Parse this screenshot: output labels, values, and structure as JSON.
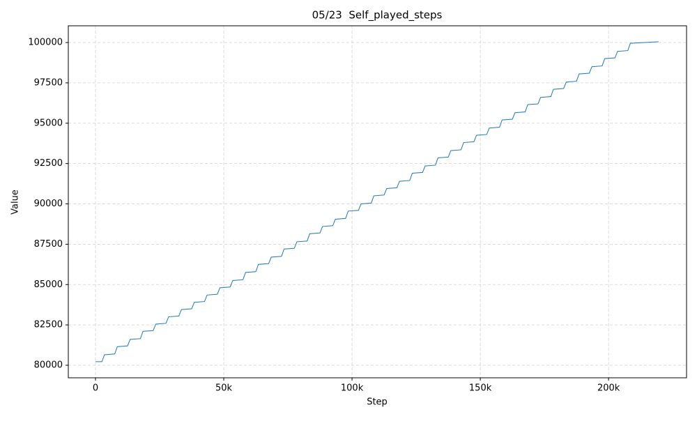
{
  "chart_data": {
    "type": "line",
    "title": "05/23  Self_played_steps",
    "x_label": "Step",
    "y_label": "Value",
    "x": [
      0,
      2500,
      3500,
      7500,
      8500,
      12500,
      13500,
      17500,
      18500,
      22500,
      23500,
      27500,
      28500,
      32500,
      33500,
      37500,
      38500,
      42500,
      43500,
      47500,
      48500,
      52500,
      53500,
      57500,
      58500,
      62500,
      63500,
      67500,
      68500,
      72500,
      73500,
      77500,
      78500,
      82500,
      83500,
      87500,
      88500,
      92500,
      93500,
      97500,
      98500,
      102500,
      103500,
      107500,
      108500,
      112500,
      113500,
      117500,
      118500,
      122500,
      123500,
      127500,
      128500,
      132500,
      133500,
      137500,
      138500,
      142500,
      143500,
      147500,
      148500,
      152500,
      153500,
      157500,
      158500,
      162500,
      163500,
      167500,
      168500,
      172500,
      173500,
      177500,
      178500,
      182500,
      183500,
      187500,
      188500,
      192500,
      193500,
      197500,
      198500,
      202500,
      203500,
      207500,
      208500,
      219500
    ],
    "series": [
      {
        "color": "#1f77b4",
        "values": [
          80220,
          80220,
          80650,
          80700,
          81150,
          81200,
          81600,
          81650,
          82100,
          82150,
          82550,
          82600,
          83000,
          83050,
          83450,
          83500,
          83900,
          83950,
          84350,
          84400,
          84800,
          84850,
          85250,
          85300,
          85750,
          85800,
          86250,
          86300,
          86700,
          86750,
          87200,
          87250,
          87650,
          87700,
          88150,
          88200,
          88600,
          88650,
          89050,
          89100,
          89550,
          89600,
          90000,
          90050,
          90500,
          90550,
          90950,
          91000,
          91400,
          91450,
          91900,
          91950,
          92350,
          92400,
          92850,
          92900,
          93300,
          93350,
          93800,
          93850,
          94250,
          94300,
          94700,
          94750,
          95200,
          95250,
          95650,
          95700,
          96150,
          96200,
          96600,
          96650,
          97100,
          97150,
          97550,
          97600,
          98050,
          98100,
          98500,
          98550,
          99000,
          99050,
          99450,
          99500,
          99950,
          100050
        ]
      }
    ],
    "xlim": [
      -10600,
      230400
    ],
    "ylim": [
      79223,
      101037
    ],
    "xticks": [
      0,
      {
        "value": 50000,
        "label": "50k"
      },
      {
        "value": 100000,
        "label": "100k"
      },
      {
        "value": 150000,
        "label": "150k"
      },
      {
        "value": 200000,
        "label": "200k"
      }
    ],
    "yticks": [
      80000,
      82500,
      85000,
      87500,
      90000,
      92500,
      95000,
      97500,
      100000
    ],
    "grid": true
  }
}
